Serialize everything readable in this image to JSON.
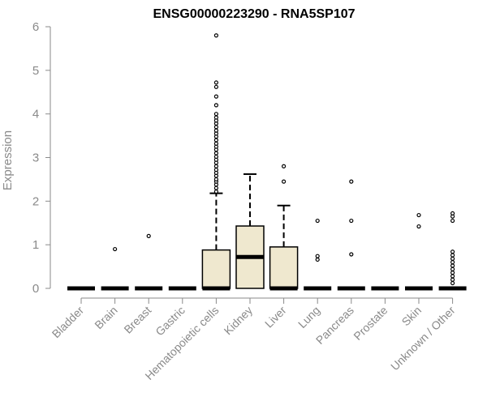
{
  "chart_data": {
    "type": "boxplot",
    "title": "ENSG00000223290 - RNA5SP107",
    "xlabel": "",
    "ylabel": "Expression",
    "ylim": [
      0,
      6
    ],
    "yticks": [
      0,
      1,
      2,
      3,
      4,
      5,
      6
    ],
    "grid": false,
    "legend": "none",
    "box_fill": "#efe8cf",
    "categories": [
      "Bladder",
      "Brain",
      "Breast",
      "Gastric",
      "Hematopoietic cells",
      "Kidney",
      "Liver",
      "Lung",
      "Pancreas",
      "Prostate",
      "Skin",
      "Unknown / Other"
    ],
    "boxes": [
      {
        "category": "Bladder",
        "q1": 0,
        "median": 0,
        "q3": 0,
        "whisker_low": 0,
        "whisker_high": 0,
        "outliers": []
      },
      {
        "category": "Brain",
        "q1": 0,
        "median": 0,
        "q3": 0,
        "whisker_low": 0,
        "whisker_high": 0,
        "outliers": [
          0.9
        ]
      },
      {
        "category": "Breast",
        "q1": 0,
        "median": 0,
        "q3": 0,
        "whisker_low": 0,
        "whisker_high": 0,
        "outliers": [
          1.2
        ]
      },
      {
        "category": "Gastric",
        "q1": 0,
        "median": 0,
        "q3": 0,
        "whisker_low": 0,
        "whisker_high": 0,
        "outliers": []
      },
      {
        "category": "Hematopoietic cells",
        "q1": 0,
        "median": 0,
        "q3": 0.88,
        "whisker_low": 0,
        "whisker_high": 2.18,
        "outliers": [
          2.22,
          2.3,
          2.38,
          2.45,
          2.5,
          2.58,
          2.65,
          2.72,
          2.8,
          2.88,
          2.95,
          3.02,
          3.1,
          3.18,
          3.25,
          3.32,
          3.4,
          3.48,
          3.55,
          3.62,
          3.7,
          3.78,
          3.85,
          3.92,
          4.0,
          4.2,
          4.4,
          4.62,
          4.72,
          5.8
        ]
      },
      {
        "category": "Kidney",
        "q1": 0,
        "median": 0.72,
        "q3": 1.43,
        "whisker_low": 0,
        "whisker_high": 2.62,
        "outliers": []
      },
      {
        "category": "Liver",
        "q1": 0,
        "median": 0,
        "q3": 0.95,
        "whisker_low": 0,
        "whisker_high": 1.9,
        "outliers": [
          2.45,
          2.8
        ]
      },
      {
        "category": "Lung",
        "q1": 0,
        "median": 0,
        "q3": 0,
        "whisker_low": 0,
        "whisker_high": 0,
        "outliers": [
          0.66,
          0.74,
          1.55
        ]
      },
      {
        "category": "Pancreas",
        "q1": 0,
        "median": 0,
        "q3": 0,
        "whisker_low": 0,
        "whisker_high": 0,
        "outliers": [
          0.78,
          1.55,
          2.45
        ]
      },
      {
        "category": "Prostate",
        "q1": 0,
        "median": 0,
        "q3": 0,
        "whisker_low": 0,
        "whisker_high": 0,
        "outliers": []
      },
      {
        "category": "Skin",
        "q1": 0,
        "median": 0,
        "q3": 0,
        "whisker_low": 0,
        "whisker_high": 0,
        "outliers": [
          1.42,
          1.68
        ]
      },
      {
        "category": "Unknown / Other",
        "q1": 0,
        "median": 0,
        "q3": 0,
        "whisker_low": 0,
        "whisker_high": 0,
        "outliers": [
          0.12,
          0.2,
          0.28,
          0.36,
          0.44,
          0.52,
          0.6,
          0.68,
          0.76,
          0.84,
          1.55,
          1.65,
          1.72
        ]
      }
    ]
  }
}
